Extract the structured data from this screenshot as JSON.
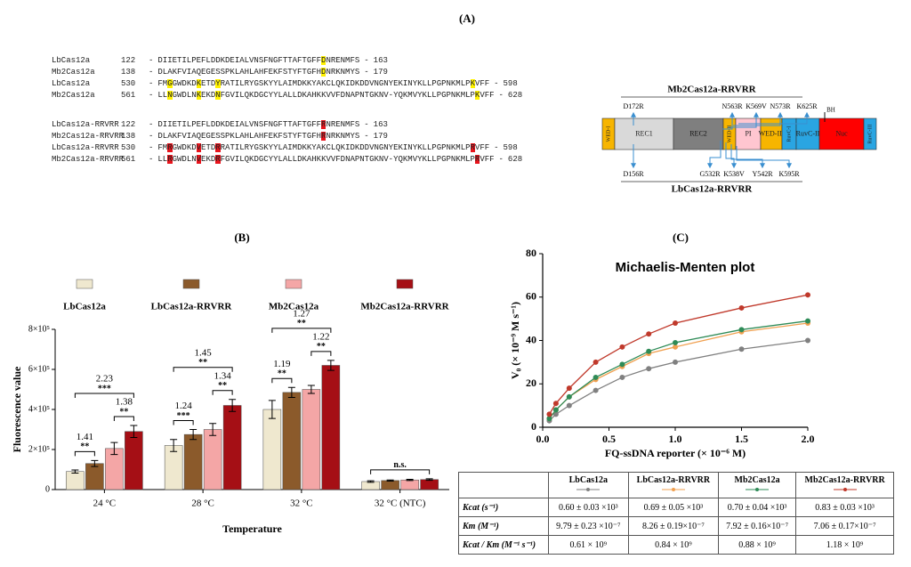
{
  "panel_a": {
    "label": "(A)",
    "separator": "-",
    "alignments": [
      [
        {
          "name": "LbCas12a",
          "start": 122,
          "end": 163,
          "segments": [
            {
              "text": "DIIETILPEFLDDKDEIALVNSFNGFTTAFTGFF"
            },
            {
              "text": "D",
              "highlight": "#fff200"
            },
            {
              "text": "NRENMFS"
            }
          ]
        },
        {
          "name": "Mb2Cas12a",
          "start": 138,
          "end": 179,
          "segments": [
            {
              "text": "DLAKFVIAQEGESSPKLAHLAHFEKFSTYFTGFH"
            },
            {
              "text": "D",
              "highlight": "#fff200"
            },
            {
              "text": "NRKNMYS"
            }
          ]
        },
        {
          "name": "LbCas12a",
          "start": 530,
          "end": 598,
          "segments": [
            {
              "text": "FM"
            },
            {
              "text": "G",
              "highlight": "#fff200"
            },
            {
              "text": "GWDKD"
            },
            {
              "text": "K",
              "highlight": "#fff200"
            },
            {
              "text": "ETD"
            },
            {
              "text": "Y",
              "highlight": "#fff200"
            },
            {
              "text": "RATILRYGSKYYLAIMDKKYAKCLQKIDKDDVNGNYEKINYKLLPGPNKMLP"
            },
            {
              "text": "K",
              "highlight": "#fff200"
            },
            {
              "text": "VFF"
            }
          ]
        },
        {
          "name": "Mb2Cas12a",
          "start": 561,
          "end": 628,
          "segments": [
            {
              "text": "LL"
            },
            {
              "text": "N",
              "highlight": "#fff200"
            },
            {
              "text": "GWDLN"
            },
            {
              "text": "K",
              "highlight": "#fff200"
            },
            {
              "text": "EKD"
            },
            {
              "text": "N",
              "highlight": "#fff200"
            },
            {
              "text": "FGVILQKDGCYYLALLDKAHKKVVFDNAPNTGKNV-YQKMVYKLLPGPNKMLP"
            },
            {
              "text": "K",
              "highlight": "#fff200"
            },
            {
              "text": "VFF"
            }
          ]
        }
      ],
      [
        {
          "name": "LbCas12a-RRVRR",
          "start": 122,
          "end": 163,
          "segments": [
            {
              "text": "DIIETILPEFLDDKDEIALVNSFNGFTTAFTGFF"
            },
            {
              "text": "R",
              "highlight": "#e8141c"
            },
            {
              "text": "NRENMFS"
            }
          ]
        },
        {
          "name": "Mb2Cas12a-RRVRR",
          "start": 138,
          "end": 179,
          "segments": [
            {
              "text": "DLAKFVIAQEGESSPKLAHLAHFEKFSTYFTGFH"
            },
            {
              "text": "R",
              "highlight": "#e8141c"
            },
            {
              "text": "NRKNMYS"
            }
          ]
        },
        {
          "name": "LbCas12a-RRVRR",
          "start": 530,
          "end": 598,
          "segments": [
            {
              "text": "FM"
            },
            {
              "text": "R",
              "highlight": "#e8141c"
            },
            {
              "text": "GWDKD"
            },
            {
              "text": "V",
              "highlight": "#e8141c"
            },
            {
              "text": "ETD"
            },
            {
              "text": "R",
              "highlight": "#e8141c"
            },
            {
              "text": "RATILRYGSKYYLAIMDKKYAKCLQKIDKDDVNGNYEKINYKLLPGPNKMLP"
            },
            {
              "text": "R",
              "highlight": "#e8141c"
            },
            {
              "text": "VFF"
            }
          ]
        },
        {
          "name": "Mb2Cas12a-RRVRR",
          "start": 561,
          "end": 628,
          "segments": [
            {
              "text": "LL"
            },
            {
              "text": "R",
              "highlight": "#e8141c"
            },
            {
              "text": "GWDLN"
            },
            {
              "text": "V",
              "highlight": "#e8141c"
            },
            {
              "text": "EKD"
            },
            {
              "text": "R",
              "highlight": "#e8141c"
            },
            {
              "text": "FGVILQKDGCYYLALLDKAHKKVVFDNAPNTGKNV-YQKMVYKLLPGPNKMLP"
            },
            {
              "text": "R",
              "highlight": "#e8141c"
            },
            {
              "text": "VFF"
            }
          ]
        }
      ]
    ],
    "domain_map": {
      "top_title": "Mb2Cas12a-RRVRR",
      "bottom_title": "LbCas12a-RRVRR",
      "top_mutations": [
        "D172R",
        "N563R",
        "K569V",
        "N573R",
        "K625R"
      ],
      "bottom_mutations": [
        "D156R",
        "G532R",
        "K538V",
        "Y542R",
        "K595R"
      ],
      "hinge": "BH",
      "domains": [
        {
          "label": "WED-I",
          "color": "#f7b500"
        },
        {
          "label": "REC1",
          "color": "#d9d9d9"
        },
        {
          "label": "REC2",
          "color": "#7f7f7f"
        },
        {
          "label": "WED-II",
          "color": "#f7b500"
        },
        {
          "label": "PI",
          "color": "#ffc6d0"
        },
        {
          "label": "WED-III",
          "color": "#f7b500"
        },
        {
          "label": "RuvC-I",
          "color": "#2aa5e2"
        },
        {
          "label": "RuvC-II",
          "color": "#2aa5e2"
        },
        {
          "label": "Nuc",
          "color": "#ff0000"
        },
        {
          "label": "RuvC-III",
          "color": "#2aa5e2"
        }
      ]
    }
  },
  "chart_data": [
    {
      "type": "bar",
      "panel": "(B)",
      "x_label": "Temperature",
      "y_label": "Fluorescence value",
      "categories": [
        "24 °C",
        "28 °C",
        "32 °C",
        "32 °C (NTC)"
      ],
      "ylim": [
        0,
        800000
      ],
      "yticks": [
        0,
        {
          "value": 200000,
          "label": "2×10⁵"
        },
        {
          "value": 400000,
          "label": "4×10⁵"
        },
        {
          "value": 600000,
          "label": "6×10⁵"
        },
        {
          "value": 800000,
          "label": "8×10⁵"
        }
      ],
      "series": [
        {
          "name": "LbCas12a",
          "color": "#efe8cf",
          "values": [
            90000,
            220000,
            400000,
            40000
          ],
          "errors": [
            8000,
            30000,
            45000,
            4000
          ]
        },
        {
          "name": "LbCas12a-RRVRR",
          "color": "#8b5a2b",
          "values": [
            130000,
            275000,
            485000,
            45000
          ],
          "errors": [
            15000,
            25000,
            25000,
            3000
          ]
        },
        {
          "name": "Mb2Cas12a",
          "color": "#f4a6a6",
          "values": [
            205000,
            300000,
            500000,
            48000
          ],
          "errors": [
            30000,
            30000,
            20000,
            3000
          ]
        },
        {
          "name": "Mb2Cas12a-RRVRR",
          "color": "#a50f15",
          "values": [
            290000,
            420000,
            620000,
            50000
          ],
          "errors": [
            30000,
            30000,
            25000,
            4000
          ]
        }
      ],
      "annotations": [
        {
          "category": 0,
          "from": 0,
          "to": 1,
          "ratio": 1.41,
          "stars": "**"
        },
        {
          "category": 0,
          "from": 0,
          "to": 3,
          "ratio": 2.23,
          "stars": "***"
        },
        {
          "category": 0,
          "from": 2,
          "to": 3,
          "ratio": 1.38,
          "stars": "**"
        },
        {
          "category": 1,
          "from": 0,
          "to": 1,
          "ratio": 1.24,
          "stars": "***"
        },
        {
          "category": 1,
          "from": 0,
          "to": 3,
          "ratio": 1.45,
          "stars": "**"
        },
        {
          "category": 1,
          "from": 2,
          "to": 3,
          "ratio": 1.34,
          "stars": "**"
        },
        {
          "category": 2,
          "from": 0,
          "to": 1,
          "ratio": 1.19,
          "stars": "**"
        },
        {
          "category": 2,
          "from": 0,
          "to": 3,
          "ratio": 1.27,
          "stars": "**"
        },
        {
          "category": 2,
          "from": 2,
          "to": 3,
          "ratio": 1.22,
          "stars": "**"
        },
        {
          "category": 3,
          "from": 0,
          "to": 3,
          "stars": "n.s."
        }
      ]
    },
    {
      "type": "line",
      "panel": "(C)",
      "title": "Michaelis-Menten plot",
      "x_label": "FQ-ssDNA reporter (× 10⁻⁶ M)",
      "y_label": "V₀ (× 10⁻⁹ M s⁻¹)",
      "x": [
        0.05,
        0.1,
        0.2,
        0.4,
        0.6,
        0.8,
        1.0,
        1.5,
        2.0
      ],
      "xlim": [
        0,
        2
      ],
      "xticks": [
        {
          "value": 0,
          "label": "0.0"
        },
        0.5,
        {
          "value": 1,
          "label": "1.0"
        },
        1.5,
        {
          "value": 2,
          "label": "2.0"
        }
      ],
      "ylim": [
        0,
        80
      ],
      "yticks": [
        0,
        20,
        40,
        60,
        80
      ],
      "series": [
        {
          "name": "LbCas12a",
          "color": "#808080",
          "values": [
            3,
            6,
            10,
            17,
            23,
            27,
            30,
            36,
            40
          ]
        },
        {
          "name": "LbCas12a-RRVRR",
          "color": "#f0a050",
          "values": [
            4,
            8,
            14,
            22,
            28,
            34,
            37,
            44,
            48
          ]
        },
        {
          "name": "Mb2Cas12a",
          "color": "#2e8b57",
          "values": [
            4,
            8,
            14,
            23,
            29,
            35,
            39,
            45,
            49
          ]
        },
        {
          "name": "Mb2Cas12a-RRVRR",
          "color": "#c0392b",
          "values": [
            6,
            11,
            18,
            30,
            37,
            43,
            48,
            55,
            61
          ]
        }
      ]
    }
  ],
  "table": {
    "columns": [
      "LbCas12a",
      "LbCas12a-RRVRR",
      "Mb2Cas12a",
      "Mb2Cas12a-RRVRR"
    ],
    "rows": [
      {
        "label": "Kcat (s⁻¹)",
        "cells": [
          "0.60 ± 0.03 ×10³",
          "0.69 ± 0.05 ×10³",
          "0.70 ± 0.04 ×10³",
          "0.83 ± 0.03 ×10³"
        ]
      },
      {
        "label": "Km (M⁻¹)",
        "cells": [
          "9.79 ± 0.23 ×10⁻⁷",
          "8.26 ± 0.19×10⁻⁷",
          "7.92 ± 0.16×10⁻⁷",
          "7.06 ± 0.17×10⁻⁷"
        ]
      },
      {
        "label": "Kcat / Km (M⁻¹ s⁻¹)",
        "cells": [
          "0.61 × 10⁹",
          "0.84 × 10⁹",
          "0.88 × 10⁹",
          "1.18 × 10⁹"
        ]
      }
    ]
  }
}
